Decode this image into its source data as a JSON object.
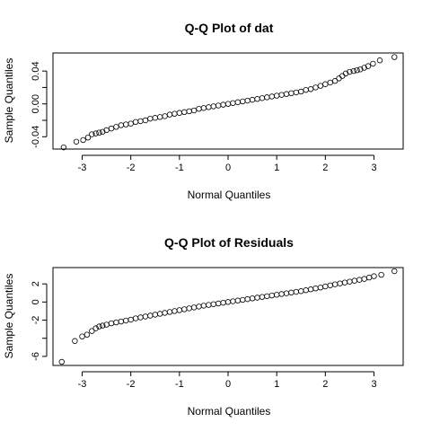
{
  "chart_data": [
    {
      "type": "scatter",
      "title": "Q-Q Plot of dat",
      "xlabel": "Normal Quantiles",
      "ylabel": "Sample Quantiles",
      "xlim": [
        -3.6,
        3.6
      ],
      "ylim": [
        -0.055,
        0.062
      ],
      "xticks": [
        -3,
        -2,
        -1,
        0,
        1,
        2,
        3
      ],
      "xtick_labels": [
        "-3",
        "-2",
        "-1",
        "0",
        "1",
        "2",
        "3"
      ],
      "yticks": [
        -0.04,
        -0.02,
        0.0,
        0.02,
        0.04
      ],
      "ytick_labels": [
        "-0.04",
        "",
        "0.00",
        "",
        "0.04"
      ],
      "points": [
        [
          -3.38,
          -0.053
        ],
        [
          -3.12,
          -0.046
        ],
        [
          -2.98,
          -0.044
        ],
        [
          -2.88,
          -0.041
        ],
        [
          -2.8,
          -0.037
        ],
        [
          -2.72,
          -0.036
        ],
        [
          -2.65,
          -0.035
        ],
        [
          -2.58,
          -0.034
        ],
        [
          -2.5,
          -0.032
        ],
        [
          -2.4,
          -0.03
        ],
        [
          -2.3,
          -0.028
        ],
        [
          -2.2,
          -0.026
        ],
        [
          -2.1,
          -0.025
        ],
        [
          -2.0,
          -0.024
        ],
        [
          -1.9,
          -0.022
        ],
        [
          -1.8,
          -0.021
        ],
        [
          -1.7,
          -0.02
        ],
        [
          -1.6,
          -0.018
        ],
        [
          -1.5,
          -0.017
        ],
        [
          -1.4,
          -0.016
        ],
        [
          -1.3,
          -0.015
        ],
        [
          -1.2,
          -0.013
        ],
        [
          -1.1,
          -0.012
        ],
        [
          -1.0,
          -0.011
        ],
        [
          -0.9,
          -0.01
        ],
        [
          -0.8,
          -0.009
        ],
        [
          -0.7,
          -0.008
        ],
        [
          -0.6,
          -0.006
        ],
        [
          -0.5,
          -0.005
        ],
        [
          -0.4,
          -0.004
        ],
        [
          -0.3,
          -0.003
        ],
        [
          -0.2,
          -0.002
        ],
        [
          -0.1,
          -0.001
        ],
        [
          0.0,
          0.0
        ],
        [
          0.1,
          0.001
        ],
        [
          0.2,
          0.002
        ],
        [
          0.3,
          0.003
        ],
        [
          0.4,
          0.004
        ],
        [
          0.5,
          0.005
        ],
        [
          0.6,
          0.006
        ],
        [
          0.7,
          0.007
        ],
        [
          0.8,
          0.008
        ],
        [
          0.9,
          0.009
        ],
        [
          1.0,
          0.01
        ],
        [
          1.1,
          0.011
        ],
        [
          1.2,
          0.012
        ],
        [
          1.3,
          0.013
        ],
        [
          1.4,
          0.014
        ],
        [
          1.5,
          0.015
        ],
        [
          1.6,
          0.017
        ],
        [
          1.7,
          0.018
        ],
        [
          1.8,
          0.02
        ],
        [
          1.9,
          0.022
        ],
        [
          2.0,
          0.024
        ],
        [
          2.1,
          0.026
        ],
        [
          2.2,
          0.028
        ],
        [
          2.28,
          0.031
        ],
        [
          2.35,
          0.034
        ],
        [
          2.42,
          0.037
        ],
        [
          2.5,
          0.039
        ],
        [
          2.58,
          0.04
        ],
        [
          2.65,
          0.041
        ],
        [
          2.72,
          0.042
        ],
        [
          2.8,
          0.044
        ],
        [
          2.88,
          0.046
        ],
        [
          2.98,
          0.049
        ],
        [
          3.12,
          0.053
        ],
        [
          3.42,
          0.057
        ]
      ]
    },
    {
      "type": "scatter",
      "title": "Q-Q Plot of Residuals",
      "xlabel": "Normal Quantiles",
      "ylabel": "Sample Quantiles",
      "xlim": [
        -3.6,
        3.6
      ],
      "ylim": [
        -7.0,
        3.8
      ],
      "xticks": [
        -3,
        -2,
        -1,
        0,
        1,
        2,
        3
      ],
      "xtick_labels": [
        "-3",
        "-2",
        "-1",
        "0",
        "1",
        "2",
        "3"
      ],
      "yticks": [
        -6,
        -4,
        -2,
        0,
        2
      ],
      "ytick_labels": [
        "-6",
        "",
        "-2",
        "0",
        "2"
      ],
      "points": [
        [
          -3.42,
          -6.6
        ],
        [
          -3.15,
          -4.3
        ],
        [
          -3.0,
          -3.8
        ],
        [
          -2.9,
          -3.6
        ],
        [
          -2.8,
          -3.2
        ],
        [
          -2.72,
          -2.9
        ],
        [
          -2.65,
          -2.7
        ],
        [
          -2.58,
          -2.6
        ],
        [
          -2.5,
          -2.5
        ],
        [
          -2.4,
          -2.35
        ],
        [
          -2.3,
          -2.25
        ],
        [
          -2.2,
          -2.15
        ],
        [
          -2.1,
          -2.05
        ],
        [
          -2.0,
          -1.95
        ],
        [
          -1.9,
          -1.8
        ],
        [
          -1.8,
          -1.7
        ],
        [
          -1.7,
          -1.6
        ],
        [
          -1.6,
          -1.5
        ],
        [
          -1.5,
          -1.4
        ],
        [
          -1.4,
          -1.3
        ],
        [
          -1.3,
          -1.2
        ],
        [
          -1.2,
          -1.1
        ],
        [
          -1.1,
          -1.0
        ],
        [
          -1.0,
          -0.9
        ],
        [
          -0.9,
          -0.8
        ],
        [
          -0.8,
          -0.7
        ],
        [
          -0.7,
          -0.6
        ],
        [
          -0.6,
          -0.5
        ],
        [
          -0.5,
          -0.4
        ],
        [
          -0.4,
          -0.32
        ],
        [
          -0.3,
          -0.24
        ],
        [
          -0.2,
          -0.16
        ],
        [
          -0.1,
          -0.08
        ],
        [
          0.0,
          0.0
        ],
        [
          0.1,
          0.08
        ],
        [
          0.2,
          0.16
        ],
        [
          0.3,
          0.24
        ],
        [
          0.4,
          0.32
        ],
        [
          0.5,
          0.4
        ],
        [
          0.6,
          0.48
        ],
        [
          0.7,
          0.56
        ],
        [
          0.8,
          0.64
        ],
        [
          0.9,
          0.72
        ],
        [
          1.0,
          0.8
        ],
        [
          1.1,
          0.88
        ],
        [
          1.2,
          0.96
        ],
        [
          1.3,
          1.04
        ],
        [
          1.4,
          1.12
        ],
        [
          1.5,
          1.2
        ],
        [
          1.6,
          1.3
        ],
        [
          1.7,
          1.4
        ],
        [
          1.8,
          1.5
        ],
        [
          1.9,
          1.6
        ],
        [
          2.0,
          1.72
        ],
        [
          2.1,
          1.84
        ],
        [
          2.2,
          1.95
        ],
        [
          2.3,
          2.05
        ],
        [
          2.4,
          2.15
        ],
        [
          2.5,
          2.25
        ],
        [
          2.6,
          2.35
        ],
        [
          2.7,
          2.45
        ],
        [
          2.8,
          2.55
        ],
        [
          2.9,
          2.7
        ],
        [
          3.0,
          2.85
        ],
        [
          3.15,
          3.0
        ],
        [
          3.42,
          3.4
        ]
      ]
    }
  ]
}
